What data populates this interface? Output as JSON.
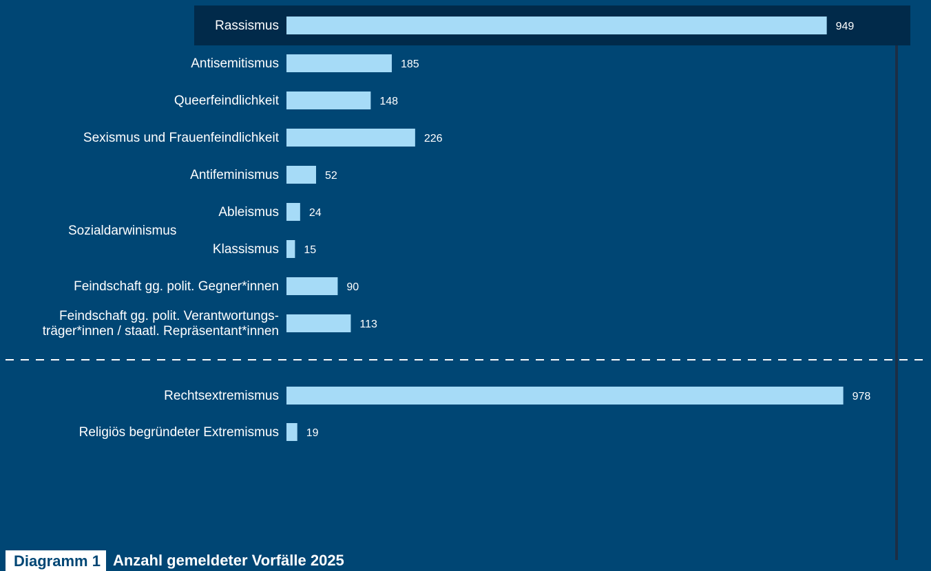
{
  "colors": {
    "background": "#004674",
    "bar": "#a6dbf7",
    "highlight_row": "#012a4a",
    "text": "#ffffff",
    "divider": "#ffffff",
    "scroll_line": "#1c2e45"
  },
  "caption": {
    "tag": "Diagramm 1",
    "text": "Anzahl gemeldeter Vorfälle 2025"
  },
  "chart_data": {
    "type": "bar",
    "orientation": "horizontal",
    "categories": [
      "Rassismus",
      "Antisemitismus",
      "Queerfeindlichkeit",
      "Sexismus und Frauenfeindlichkeit",
      "Antifeminismus",
      "Ableismus",
      "Klassismus",
      "Feindschaft gg. polit. Gegner*innen",
      "Feindschaft gg. polit. Verantwortungs- träger*innen / staatl. Repräsentant*innen",
      "Rechtsextremismus",
      "Religiös begründeter Extremismus"
    ],
    "category_lines": [
      [
        "Rassismus"
      ],
      [
        "Antisemitismus"
      ],
      [
        "Queerfeindlichkeit"
      ],
      [
        "Sexismus und Frauenfeindlichkeit"
      ],
      [
        "Antifeminismus"
      ],
      [
        "Ableismus"
      ],
      [
        "Klassismus"
      ],
      [
        "Feindschaft gg. polit. Gegner*innen"
      ],
      [
        "Feindschaft gg. polit. Verantwortungs-",
        "träger*innen / staatl. Repräsentant*innen"
      ],
      [
        "Rechtsextremismus"
      ],
      [
        "Religiös begründeter Extremismus"
      ]
    ],
    "values": [
      949,
      185,
      148,
      226,
      52,
      24,
      15,
      90,
      113,
      978,
      19
    ],
    "highlighted_category": "Rassismus",
    "group_label": {
      "text": "Sozialdarwinismus",
      "categories": [
        "Ableismus",
        "Klassismus"
      ]
    },
    "separator_after": "Feindschaft gg. polit. Verantwortungs- träger*innen / staatl. Repräsentant*innen",
    "xlim": [
      0,
      978
    ],
    "grid": false,
    "legend": "none",
    "title": "",
    "xlabel": "",
    "ylabel": ""
  }
}
